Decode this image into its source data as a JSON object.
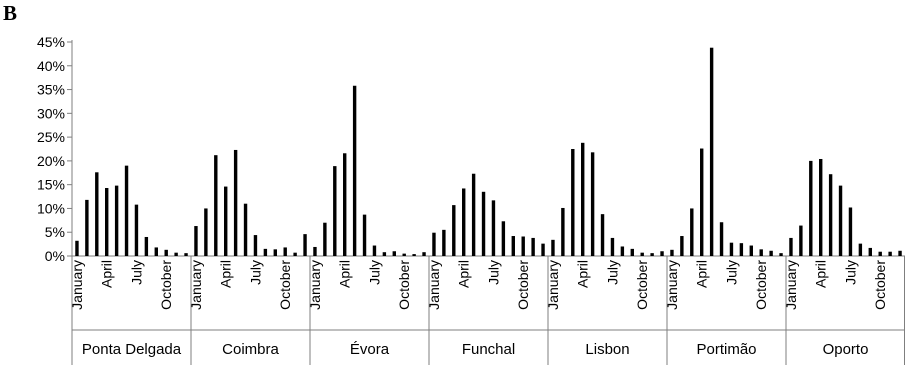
{
  "panel_label": "B",
  "chart_data": {
    "type": "bar",
    "title": "",
    "xlabel": "",
    "ylabel": "",
    "ylim": [
      0,
      45
    ],
    "y_ticks": [
      "0%",
      "5%",
      "10%",
      "15%",
      "20%",
      "25%",
      "30%",
      "35%",
      "40%",
      "45%"
    ],
    "grid": false,
    "legend": "none",
    "bar_color": "#000000",
    "month_labels": [
      "January",
      "",
      "",
      "April",
      "",
      "",
      "July",
      "",
      "",
      "October",
      "",
      ""
    ],
    "groups": [
      {
        "name": "Ponta Delgada",
        "values": [
          3.2,
          11.8,
          17.6,
          14.3,
          14.8,
          19.0,
          10.8,
          4.0,
          1.8,
          1.3,
          0.7,
          0.6
        ]
      },
      {
        "name": "Coimbra",
        "values": [
          6.3,
          10.0,
          21.2,
          14.6,
          22.3,
          11.0,
          4.4,
          1.5,
          1.4,
          1.8,
          0.7,
          4.6
        ]
      },
      {
        "name": "Évora",
        "values": [
          1.9,
          7.0,
          18.9,
          21.6,
          35.8,
          8.7,
          2.2,
          0.8,
          1.0,
          0.5,
          0.4,
          0.8
        ]
      },
      {
        "name": "Funchal",
        "values": [
          4.9,
          5.5,
          10.7,
          14.2,
          17.3,
          13.5,
          11.7,
          7.3,
          4.2,
          4.1,
          3.8,
          2.6
        ]
      },
      {
        "name": "Lisbon",
        "values": [
          3.4,
          10.1,
          22.5,
          23.8,
          21.8,
          8.8,
          3.8,
          2.0,
          1.5,
          0.7,
          0.6,
          1.0
        ]
      },
      {
        "name": "Portimão",
        "values": [
          1.3,
          4.2,
          10.0,
          22.6,
          43.8,
          7.1,
          2.8,
          2.7,
          2.2,
          1.4,
          1.1,
          0.6
        ]
      },
      {
        "name": "Oporto",
        "values": [
          3.8,
          6.4,
          20.0,
          20.4,
          17.2,
          14.8,
          10.2,
          2.6,
          1.7,
          0.9,
          0.9,
          1.1
        ]
      }
    ]
  }
}
